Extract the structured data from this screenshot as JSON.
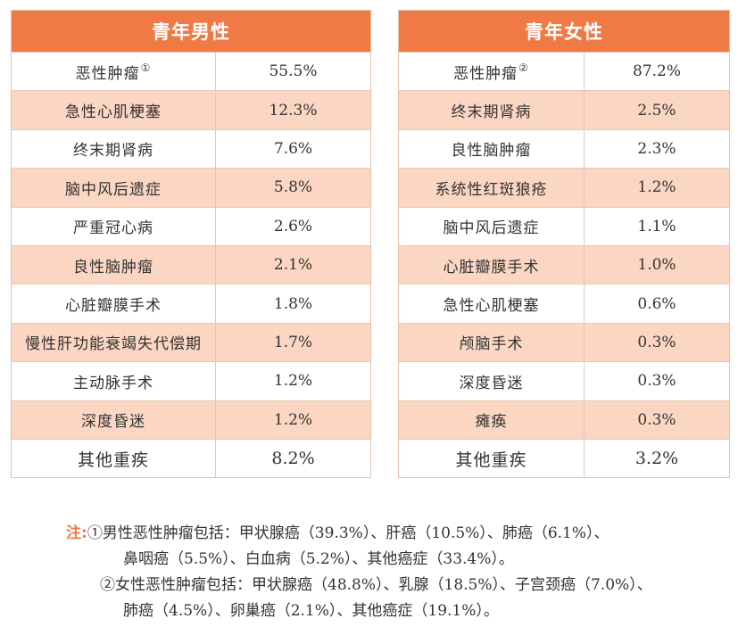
{
  "male": {
    "title": "青年男性",
    "rows": [
      {
        "name": "恶性肿瘤",
        "mark": "①",
        "value": "55.5%"
      },
      {
        "name": "急性心肌梗塞",
        "mark": "",
        "value": "12.3%"
      },
      {
        "name": "终末期肾病",
        "mark": "",
        "value": "7.6%"
      },
      {
        "name": "脑中风后遗症",
        "mark": "",
        "value": "5.8%"
      },
      {
        "name": "严重冠心病",
        "mark": "",
        "value": "2.6%"
      },
      {
        "name": "良性脑肿瘤",
        "mark": "",
        "value": "2.1%"
      },
      {
        "name": "心脏瓣膜手术",
        "mark": "",
        "value": "1.8%"
      },
      {
        "name": "慢性肝功能衰竭失代偿期",
        "mark": "",
        "value": "1.7%"
      },
      {
        "name": "主动脉手术",
        "mark": "",
        "value": "1.2%"
      },
      {
        "name": "深度昏迷",
        "mark": "",
        "value": "1.2%"
      },
      {
        "name": "其他重疾",
        "mark": "",
        "value": "8.2%"
      }
    ]
  },
  "female": {
    "title": "青年女性",
    "rows": [
      {
        "name": "恶性肿瘤",
        "mark": "②",
        "value": "87.2%"
      },
      {
        "name": "终末期肾病",
        "mark": "",
        "value": "2.5%"
      },
      {
        "name": "良性脑肿瘤",
        "mark": "",
        "value": "2.3%"
      },
      {
        "name": "系统性红斑狼疮",
        "mark": "",
        "value": "1.2%"
      },
      {
        "name": "脑中风后遗症",
        "mark": "",
        "value": "1.1%"
      },
      {
        "name": "心脏瓣膜手术",
        "mark": "",
        "value": "1.0%"
      },
      {
        "name": "急性心肌梗塞",
        "mark": "",
        "value": "0.6%"
      },
      {
        "name": "颅脑手术",
        "mark": "",
        "value": "0.3%"
      },
      {
        "name": "深度昏迷",
        "mark": "",
        "value": "0.3%"
      },
      {
        "name": "瘫痪",
        "mark": "",
        "value": "0.3%"
      },
      {
        "name": "其他重疾",
        "mark": "",
        "value": "3.2%"
      }
    ]
  },
  "notes": {
    "label": "注:",
    "note1_line1": "①男性恶性肿瘤包括：甲状腺癌（39.3%）、肝癌（10.5%）、肺癌（6.1%）、",
    "note1_line2": "鼻咽癌（5.5%）、白血病（5.2%）、其他癌症（33.4%）。",
    "note2_line1": "②女性恶性肿瘤包括：甲状腺癌（48.8%）、乳腺（18.5%）、子宫颈癌（7.0%）、",
    "note2_line2": "肺癌（4.5%）、卵巢癌（2.1%）、其他癌症（19.1%）。"
  }
}
